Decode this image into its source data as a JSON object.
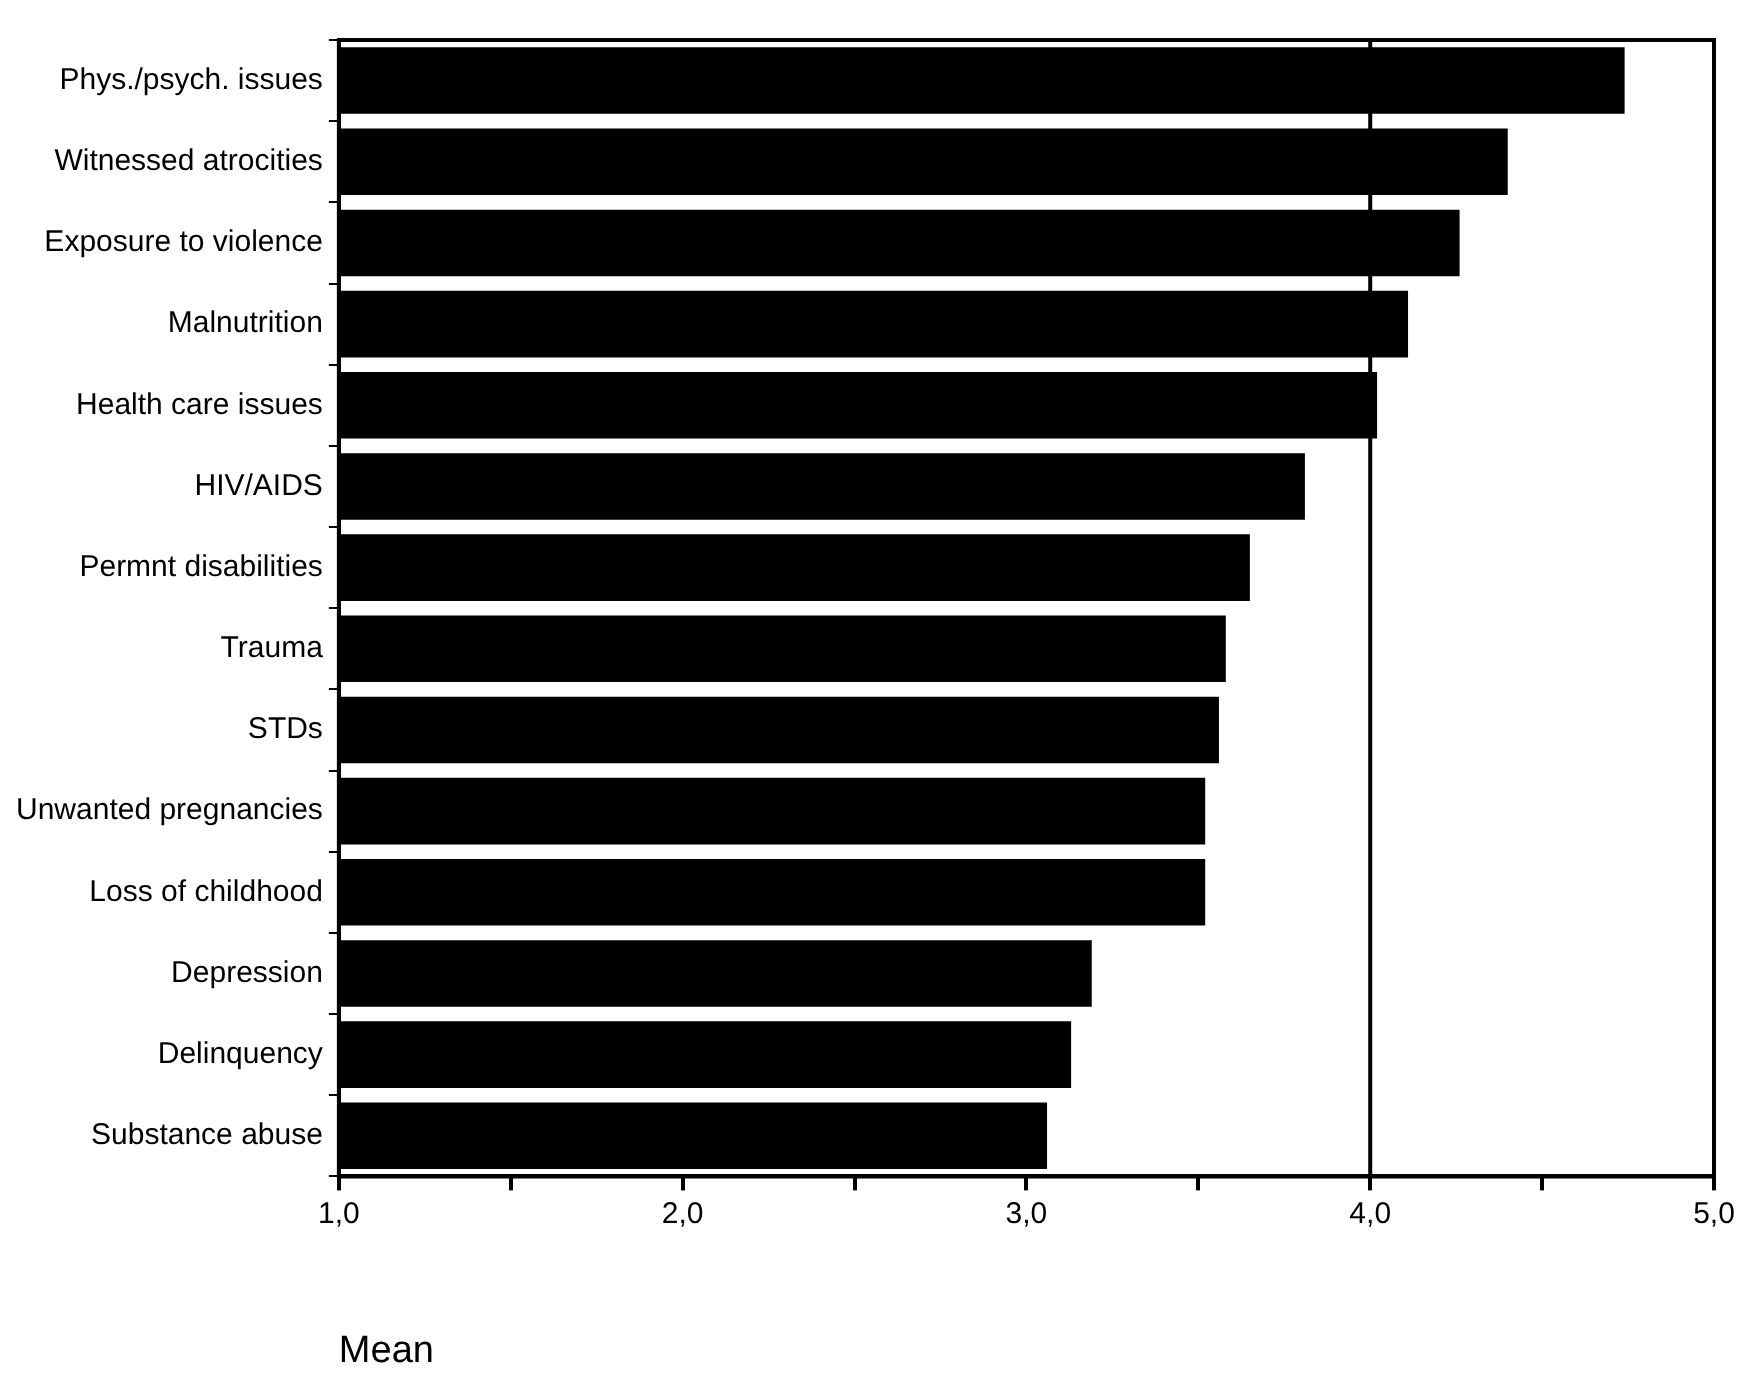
{
  "chart_data": {
    "type": "bar",
    "orientation": "horizontal",
    "xlabel": "Mean",
    "categories": [
      "Phys./psych. issues",
      "Witnessed atrocities",
      "Exposure to violence",
      "Malnutrition",
      "Health care issues",
      "HIV/AIDS",
      "Permnt disabilities",
      "Trauma",
      "STDs",
      "Unwanted pregnancies",
      "Loss of childhood",
      "Depression",
      "Delinquency",
      "Substance abuse"
    ],
    "values": [
      4.74,
      4.4,
      4.26,
      4.11,
      4.02,
      3.81,
      3.65,
      3.58,
      3.56,
      3.52,
      3.52,
      3.19,
      3.13,
      3.06
    ],
    "color": "#000000",
    "xlim": [
      1,
      5
    ],
    "xticks": [
      {
        "value": 1,
        "label": "1,0"
      },
      {
        "value": 1.5,
        "label": null
      },
      {
        "value": 2,
        "label": "2,0"
      },
      {
        "value": 2.5,
        "label": null
      },
      {
        "value": 3,
        "label": "3,0"
      },
      {
        "value": 3.5,
        "label": null
      },
      {
        "value": 4,
        "label": "4,0"
      },
      {
        "value": 4.5,
        "label": null
      },
      {
        "value": 5,
        "label": "5,0"
      }
    ],
    "ref_lines": [
      {
        "axis": "x",
        "value": 4,
        "color": "#000000"
      }
    ],
    "grid": false,
    "legend": false
  }
}
